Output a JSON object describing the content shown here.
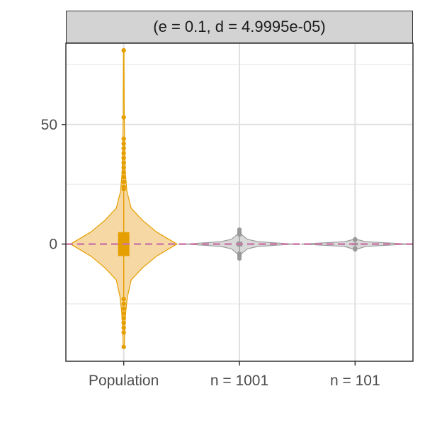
{
  "chart_data": {
    "type": "violin",
    "facet_label": "(e = 0.1, d = 4.9995e-05)",
    "categories": [
      "Population",
      "n = 1001",
      "n = 101"
    ],
    "y_ticks": [
      0,
      50
    ],
    "ylim": [
      -49,
      84
    ],
    "grid": true,
    "reference_line": {
      "y": 0,
      "style": "dashed",
      "color": "#cc79a7"
    },
    "series": [
      {
        "category": "Population",
        "color": "#e69f00",
        "fill": "#f5d8a4",
        "box": {
          "q1": -5,
          "median": 0,
          "q3": 5
        },
        "whisker": [
          -24,
          22
        ],
        "outliers": [
          81,
          53,
          44,
          42,
          40,
          38,
          36,
          34,
          32,
          30,
          28,
          26,
          24,
          23,
          -23,
          -25,
          -27,
          -29,
          -31,
          -33,
          -35,
          -37,
          -43
        ],
        "density": [
          [
            -43,
            0.01
          ],
          [
            -35,
            0.02
          ],
          [
            -28,
            0.04
          ],
          [
            -22,
            0.07
          ],
          [
            -15,
            0.14
          ],
          [
            -10,
            0.35
          ],
          [
            -5,
            0.62
          ],
          [
            0,
            1.0
          ],
          [
            5,
            0.62
          ],
          [
            10,
            0.35
          ],
          [
            15,
            0.14
          ],
          [
            22,
            0.06
          ],
          [
            30,
            0.03
          ],
          [
            40,
            0.02
          ],
          [
            53,
            0.01
          ],
          [
            81,
            0.005
          ]
        ]
      },
      {
        "category": "n = 1001",
        "color": "#999999",
        "fill": "#d9d9d9",
        "box": {
          "q1": -1,
          "median": 0,
          "q3": 1
        },
        "whisker": [
          -3,
          3
        ],
        "outliers": [
          6,
          5,
          4,
          -4,
          -5,
          -6
        ],
        "density": [
          [
            -6,
            0.01
          ],
          [
            -4,
            0.04
          ],
          [
            -2,
            0.15
          ],
          [
            -1,
            0.35
          ],
          [
            0,
            1.0
          ],
          [
            1,
            0.35
          ],
          [
            2,
            0.15
          ],
          [
            4,
            0.04
          ],
          [
            6,
            0.01
          ]
        ]
      },
      {
        "category": "n = 101",
        "color": "#999999",
        "fill": "#d9d9d9",
        "box": {
          "q1": -0.5,
          "median": 0,
          "q3": 0.5
        },
        "whisker": [
          -1.5,
          1.5
        ],
        "outliers": [
          2,
          1.8,
          -1.8,
          -2.2
        ],
        "density": [
          [
            -2.2,
            0.02
          ],
          [
            -1,
            0.2
          ],
          [
            0,
            1.0
          ],
          [
            1,
            0.2
          ],
          [
            2,
            0.02
          ]
        ]
      }
    ]
  }
}
